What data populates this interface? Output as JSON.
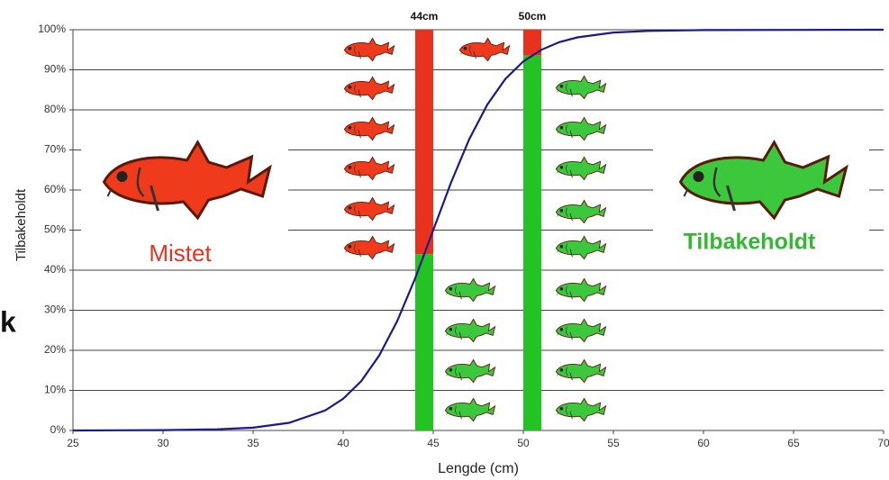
{
  "chart_data": {
    "type": "line",
    "x_label": "Lengde (cm)",
    "y_label": "Tilbakeholdt",
    "x": [
      25,
      30,
      33,
      35,
      37,
      39,
      40,
      41,
      42,
      43,
      44,
      45,
      46,
      47,
      48,
      49,
      50,
      51,
      52,
      53,
      55,
      57,
      60,
      70
    ],
    "series": [
      {
        "color": "#1a1a8c",
        "values": [
          0,
          0.1,
          0.3,
          0.7,
          1.9,
          5,
          7.9,
          12.3,
          18.7,
          27.3,
          38,
          50,
          62,
          72.7,
          81.3,
          87.7,
          92.1,
          95,
          96.9,
          98.1,
          99.3,
          99.7,
          99.9,
          100
        ]
      }
    ],
    "xlim": [
      25,
      70
    ],
    "xticks": [
      25,
      30,
      35,
      40,
      45,
      50,
      55,
      60,
      65,
      70
    ],
    "ylim": [
      0,
      100
    ],
    "yticks": [
      {
        "value": 0,
        "label": "0%"
      },
      {
        "value": 10,
        "label": "10%"
      },
      {
        "value": 20,
        "label": "20%"
      },
      {
        "value": 30,
        "label": "30%"
      },
      {
        "value": 40,
        "label": "40%"
      },
      {
        "value": 50,
        "label": "50%"
      },
      {
        "value": 60,
        "label": "60%"
      },
      {
        "value": 70,
        "label": "70%"
      },
      {
        "value": 80,
        "label": "80%"
      },
      {
        "value": 90,
        "label": "90%"
      },
      {
        "value": 100,
        "label": "100%"
      }
    ],
    "grid": true,
    "markers": [
      {
        "x": 44,
        "label": "44cm"
      },
      {
        "x": 50,
        "label": "50cm"
      }
    ],
    "marker_colors": {
      "below": "#e8321e",
      "above": "#22c322"
    },
    "annotations": {
      "discarded": "Mistet",
      "retained": "Tilbakeholdt",
      "edge": "k"
    }
  }
}
